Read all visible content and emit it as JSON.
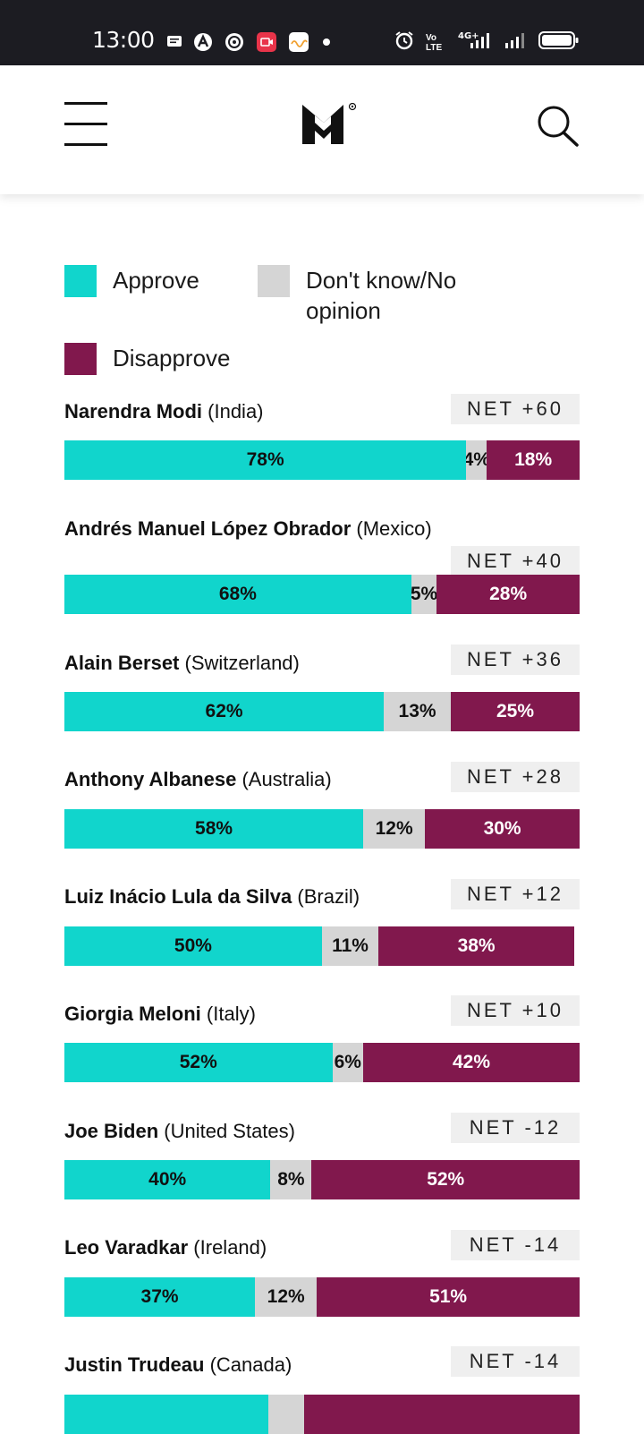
{
  "status_bar": {
    "time": "13:00",
    "icons_left": [
      "message-icon",
      "a-app-icon",
      "globe-app-icon",
      "record-icon",
      "gallery-icon",
      "dot-icon"
    ],
    "icons_right": [
      "alarm-icon",
      "volte-icon",
      "4g-signal-icon",
      "signal-icon",
      "battery-icon"
    ],
    "volte_label": "Vo LTE",
    "network_label": "4G+"
  },
  "header": {
    "logo": "M-logo"
  },
  "colors": {
    "approve": "#11d5cc",
    "dont_know": "#d5d5d5",
    "disapprove": "#81184d"
  },
  "legend": {
    "approve": "Approve",
    "dont_know": "Don't know/No opinion",
    "disapprove": "Disapprove"
  },
  "chart_data": {
    "type": "bar",
    "stacked": true,
    "orientation": "horizontal",
    "series_order": [
      "Approve",
      "Don't know/No opinion",
      "Disapprove"
    ],
    "rows": [
      {
        "name": "Narendra Modi",
        "country": "(India)",
        "net": "NET +60",
        "approve": 78,
        "dont_know": 4,
        "disapprove": 18,
        "approve_label": "78%",
        "dont_know_label": "4%",
        "disapprove_label": "18%"
      },
      {
        "name": "Andrés Manuel López Obrador",
        "country": "(Mexico)",
        "net": "NET +40",
        "approve": 68,
        "dont_know": 5,
        "disapprove": 28,
        "approve_label": "68%",
        "dont_know_label": "5%",
        "disapprove_label": "28%"
      },
      {
        "name": "Alain Berset",
        "country": "(Switzerland)",
        "net": "NET +36",
        "approve": 62,
        "dont_know": 13,
        "disapprove": 25,
        "approve_label": "62%",
        "dont_know_label": "13%",
        "disapprove_label": "25%"
      },
      {
        "name": "Anthony Albanese",
        "country": "(Australia)",
        "net": "NET +28",
        "approve": 58,
        "dont_know": 12,
        "disapprove": 30,
        "approve_label": "58%",
        "dont_know_label": "12%",
        "disapprove_label": "30%"
      },
      {
        "name": "Luiz Inácio Lula da Silva",
        "country": "(Brazil)",
        "net": "NET +12",
        "approve": 50,
        "dont_know": 11,
        "disapprove": 38,
        "approve_label": "50%",
        "dont_know_label": "11%",
        "disapprove_label": "38%"
      },
      {
        "name": "Giorgia Meloni",
        "country": "(Italy)",
        "net": "NET +10",
        "approve": 52,
        "dont_know": 6,
        "disapprove": 42,
        "approve_label": "52%",
        "dont_know_label": "6%",
        "disapprove_label": "42%"
      },
      {
        "name": "Joe Biden",
        "country": "(United States)",
        "net": "NET -12",
        "approve": 40,
        "dont_know": 8,
        "disapprove": 52,
        "approve_label": "40%",
        "dont_know_label": "8%",
        "disapprove_label": "52%"
      },
      {
        "name": "Leo Varadkar",
        "country": "(Ireland)",
        "net": "NET -14",
        "approve": 37,
        "dont_know": 12,
        "disapprove": 51,
        "approve_label": "37%",
        "dont_know_label": "12%",
        "disapprove_label": "51%"
      },
      {
        "name": "Justin Trudeau",
        "country": "(Canada)",
        "net": "NET -14",
        "approve": 40,
        "dont_know": 7,
        "disapprove": 54,
        "approve_label": "",
        "dont_know_label": "",
        "disapprove_label": ""
      }
    ]
  }
}
